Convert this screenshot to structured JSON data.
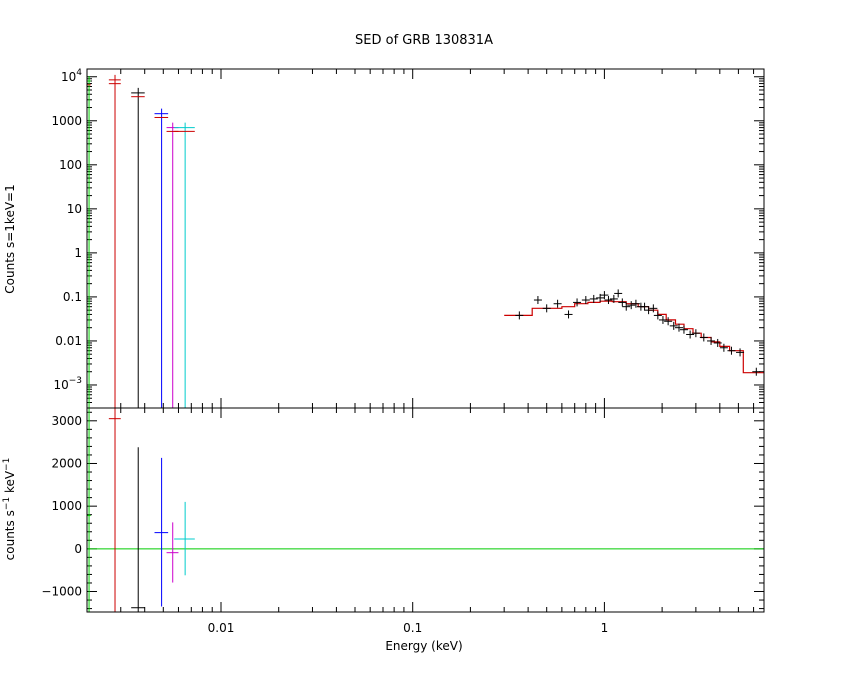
{
  "chart_data": {
    "type": "scatter",
    "title": "SED of GRB 130831A",
    "xlabel": "Energy (keV)",
    "xscale": "log",
    "xlim": [
      0.002,
      6.8
    ],
    "x_ticks": [
      {
        "value": 0.01,
        "label": "0.01"
      },
      {
        "value": 0.1,
        "label": "0.1"
      },
      {
        "value": 1,
        "label": "1"
      }
    ],
    "upper_panel": {
      "ylabel": "Counts s=1keV=1",
      "yscale": "log",
      "ylim": [
        0.0003,
        15000
      ],
      "y_ticks": [
        {
          "value": 10000,
          "base": "10",
          "sup": "4"
        },
        {
          "value": 1000,
          "label": "1000"
        },
        {
          "value": 100,
          "label": "100"
        },
        {
          "value": 10,
          "label": "10"
        },
        {
          "value": 1,
          "label": "1"
        },
        {
          "value": 0.1,
          "label": "0.1"
        },
        {
          "value": 0.01,
          "label": "0.01"
        },
        {
          "value": 0.001,
          "base": "10",
          "sup": "−3"
        }
      ],
      "uvot_points": [
        {
          "x": 0.00205,
          "dx": 4e-05,
          "y": 8000,
          "y_low": 0.0003,
          "color": "#00cc00"
        },
        {
          "x": 0.0028,
          "dx": 0.0002,
          "y": 8500,
          "y_low": 0.0003,
          "color": "#cc0000"
        },
        {
          "x": 0.0037,
          "dx": 0.0003,
          "y": 4300,
          "y_low": 0.0003,
          "color": "#000000"
        },
        {
          "x": 0.0049,
          "dx": 0.0004,
          "y": 1450,
          "y_low": 0.0003,
          "color": "#0000ff"
        },
        {
          "x": 0.0056,
          "dx": 0.0004,
          "y": 700,
          "y_low": 0.0003,
          "color": "#cc00cc"
        },
        {
          "x": 0.0065,
          "dx": 0.0008,
          "y": 700,
          "y_low": 0.0003,
          "color": "#00cccc"
        }
      ],
      "uvot_model_color": "#cc0000",
      "xrt_points": [
        {
          "x": 0.36,
          "y": 0.038
        },
        {
          "x": 0.45,
          "y": 0.085
        },
        {
          "x": 0.5,
          "y": 0.055
        },
        {
          "x": 0.57,
          "y": 0.07
        },
        {
          "x": 0.65,
          "y": 0.04
        },
        {
          "x": 0.72,
          "y": 0.075
        },
        {
          "x": 0.8,
          "y": 0.085
        },
        {
          "x": 0.88,
          "y": 0.09
        },
        {
          "x": 0.95,
          "y": 0.095
        },
        {
          "x": 1.0,
          "y": 0.11
        },
        {
          "x": 1.05,
          "y": 0.085
        },
        {
          "x": 1.12,
          "y": 0.09
        },
        {
          "x": 1.18,
          "y": 0.12
        },
        {
          "x": 1.24,
          "y": 0.075
        },
        {
          "x": 1.3,
          "y": 0.06
        },
        {
          "x": 1.38,
          "y": 0.065
        },
        {
          "x": 1.46,
          "y": 0.07
        },
        {
          "x": 1.55,
          "y": 0.06
        },
        {
          "x": 1.62,
          "y": 0.06
        },
        {
          "x": 1.7,
          "y": 0.05
        },
        {
          "x": 1.8,
          "y": 0.055
        },
        {
          "x": 1.9,
          "y": 0.038
        },
        {
          "x": 2.02,
          "y": 0.03
        },
        {
          "x": 2.15,
          "y": 0.028
        },
        {
          "x": 2.3,
          "y": 0.022
        },
        {
          "x": 2.45,
          "y": 0.02
        },
        {
          "x": 2.6,
          "y": 0.018
        },
        {
          "x": 2.8,
          "y": 0.014
        },
        {
          "x": 3.0,
          "y": 0.015
        },
        {
          "x": 3.3,
          "y": 0.012
        },
        {
          "x": 3.6,
          "y": 0.01
        },
        {
          "x": 3.9,
          "y": 0.009
        },
        {
          "x": 4.2,
          "y": 0.007
        },
        {
          "x": 4.6,
          "y": 0.006
        },
        {
          "x": 5.1,
          "y": 0.0055
        },
        {
          "x": 6.2,
          "y": 0.002
        }
      ],
      "xrt_point_color": "#000000",
      "xrt_model_color": "#cc0000",
      "xrt_model": [
        [
          0.3,
          0.038
        ],
        [
          0.42,
          0.038
        ],
        [
          0.42,
          0.055
        ],
        [
          0.6,
          0.055
        ],
        [
          0.6,
          0.06
        ],
        [
          0.7,
          0.06
        ],
        [
          0.7,
          0.07
        ],
        [
          0.82,
          0.07
        ],
        [
          0.82,
          0.075
        ],
        [
          0.95,
          0.075
        ],
        [
          0.95,
          0.08
        ],
        [
          1.1,
          0.08
        ],
        [
          1.1,
          0.078
        ],
        [
          1.3,
          0.078
        ],
        [
          1.3,
          0.07
        ],
        [
          1.5,
          0.07
        ],
        [
          1.5,
          0.06
        ],
        [
          1.7,
          0.06
        ],
        [
          1.7,
          0.05
        ],
        [
          1.9,
          0.05
        ],
        [
          1.9,
          0.04
        ],
        [
          2.1,
          0.04
        ],
        [
          2.1,
          0.03
        ],
        [
          2.35,
          0.03
        ],
        [
          2.35,
          0.024
        ],
        [
          2.6,
          0.024
        ],
        [
          2.6,
          0.019
        ],
        [
          2.9,
          0.019
        ],
        [
          2.9,
          0.015
        ],
        [
          3.2,
          0.015
        ],
        [
          3.2,
          0.012
        ],
        [
          3.6,
          0.012
        ],
        [
          3.6,
          0.0095
        ],
        [
          4.0,
          0.0095
        ],
        [
          4.0,
          0.0075
        ],
        [
          4.5,
          0.0075
        ],
        [
          4.5,
          0.006
        ],
        [
          5.3,
          0.006
        ],
        [
          5.3,
          0.0019
        ],
        [
          6.8,
          0.0019
        ]
      ]
    },
    "lower_panel": {
      "ylabel_main": "counts s",
      "ylabel_sup1": "−1",
      "ylabel_mid": " keV",
      "ylabel_sup2": "−1",
      "yscale": "linear",
      "ylim": [
        -1480,
        3300
      ],
      "y_ticks": [
        {
          "value": 3000,
          "label": "3000"
        },
        {
          "value": 2000,
          "label": "2000"
        },
        {
          "value": 1000,
          "label": "1000"
        },
        {
          "value": 0,
          "label": "0"
        },
        {
          "value": -1000,
          "label": "−1000"
        }
      ],
      "zero_line_color": "#00cc00",
      "residuals": [
        {
          "x": 0.00205,
          "dx": 4e-05,
          "y": 780,
          "y_low": -1480,
          "y_high": 3300,
          "color": "#00cc00"
        },
        {
          "x": 0.0028,
          "dx": 0.0002,
          "y": 3050,
          "y_low": -1480,
          "y_high": 3300,
          "color": "#cc0000"
        },
        {
          "x": 0.0037,
          "dx": 0.0003,
          "y": -1380,
          "y_low": -1480,
          "y_high": 2380,
          "color": "#000000"
        },
        {
          "x": 0.0049,
          "dx": 0.0004,
          "y": 380,
          "y_low": -1350,
          "y_high": 2130,
          "color": "#0000ff"
        },
        {
          "x": 0.0056,
          "dx": 0.0004,
          "y": -90,
          "y_low": -790,
          "y_high": 620,
          "color": "#cc00cc"
        },
        {
          "x": 0.0065,
          "dx": 0.0008,
          "y": 230,
          "y_low": -620,
          "y_high": 1100,
          "color": "#00cccc"
        }
      ]
    }
  }
}
